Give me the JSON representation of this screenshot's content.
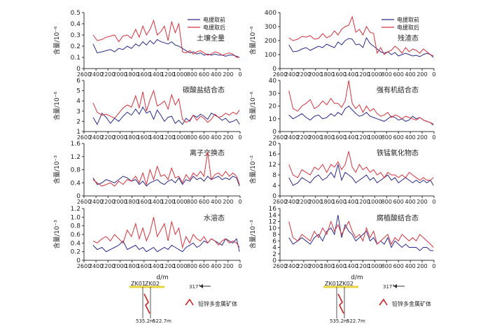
{
  "colors": {
    "before": "#2b2b8c",
    "after": "#d8323c",
    "well": "#cc2222",
    "ground": "#e8d23a",
    "axis": "#333333"
  },
  "xlabel": "d/m",
  "legend": {
    "before": "电援取前",
    "after": "电援取后"
  },
  "section": {
    "wells": [
      "ZK01",
      "ZK02"
    ],
    "depths": [
      "535.2m",
      "522.7m"
    ],
    "azimuth": "317°",
    "orebody_label": "铅锌多金属矿体"
  },
  "chart_data": [
    {
      "type": "line",
      "title": "土壤全量",
      "ylabel": "含量/10⁻⁶",
      "xlim": [
        2600,
        0
      ],
      "ylim": [
        0,
        0.5
      ],
      "yticks": [
        "0",
        "0.1",
        "0.2",
        "0.3",
        "0.4",
        "0.5"
      ],
      "legend": true,
      "x": [
        2450,
        2380,
        2300,
        2230,
        2160,
        2090,
        2020,
        1950,
        1880,
        1810,
        1740,
        1680,
        1620,
        1560,
        1500,
        1440,
        1380,
        1320,
        1260,
        1200,
        1140,
        1080,
        1020,
        960,
        900,
        840,
        780,
        720,
        660,
        600,
        540,
        480,
        420,
        360,
        300,
        240,
        180,
        120,
        60,
        10
      ],
      "series": [
        {
          "name": "电援取前",
          "values": [
            0.22,
            0.14,
            0.15,
            0.16,
            0.17,
            0.15,
            0.18,
            0.17,
            0.2,
            0.18,
            0.22,
            0.2,
            0.24,
            0.21,
            0.25,
            0.22,
            0.26,
            0.24,
            0.23,
            0.22,
            0.24,
            0.21,
            0.2,
            0.18,
            0.16,
            0.14,
            0.15,
            0.13,
            0.14,
            0.12,
            0.13,
            0.12,
            0.13,
            0.12,
            0.12,
            0.11,
            0.12,
            0.12,
            0.11,
            0.1
          ]
        },
        {
          "name": "电援取后",
          "values": [
            0.3,
            0.25,
            0.26,
            0.28,
            0.29,
            0.3,
            0.24,
            0.29,
            0.3,
            0.27,
            0.35,
            0.28,
            0.38,
            0.3,
            0.35,
            0.43,
            0.3,
            0.33,
            0.38,
            0.25,
            0.42,
            0.32,
            0.4,
            0.15,
            0.14,
            0.16,
            0.13,
            0.15,
            0.16,
            0.14,
            0.12,
            0.13,
            0.15,
            0.14,
            0.12,
            0.13,
            0.14,
            0.13,
            0.1,
            0.1
          ]
        }
      ]
    },
    {
      "type": "line",
      "title": "残渣态",
      "ylabel": "含量/10⁻⁶",
      "xlim": [
        2600,
        0
      ],
      "ylim": [
        0,
        400
      ],
      "yticks": [
        "0",
        "100",
        "200",
        "300",
        "400"
      ],
      "legend": true,
      "x": [
        2450,
        2380,
        2300,
        2230,
        2160,
        2090,
        2020,
        1950,
        1880,
        1810,
        1740,
        1680,
        1620,
        1560,
        1500,
        1440,
        1380,
        1320,
        1260,
        1200,
        1140,
        1080,
        1020,
        960,
        900,
        840,
        780,
        720,
        660,
        600,
        540,
        480,
        420,
        360,
        300,
        240,
        180,
        120,
        60,
        10
      ],
      "series": [
        {
          "name": "电援取前",
          "values": [
            170,
            120,
            125,
            140,
            150,
            130,
            145,
            160,
            150,
            175,
            160,
            150,
            190,
            170,
            200,
            215,
            210,
            170,
            175,
            150,
            220,
            180,
            160,
            140,
            120,
            110,
            120,
            100,
            115,
            90,
            100,
            110,
            100,
            90,
            95,
            85,
            100,
            110,
            100,
            80
          ]
        },
        {
          "name": "电援取后",
          "values": [
            220,
            200,
            210,
            230,
            225,
            235,
            210,
            215,
            250,
            220,
            235,
            270,
            240,
            280,
            300,
            310,
            370,
            260,
            280,
            240,
            300,
            260,
            250,
            110,
            150,
            100,
            120,
            130,
            160,
            140,
            110,
            150,
            120,
            140,
            130,
            110,
            140,
            120,
            100,
            90
          ]
        }
      ]
    },
    {
      "type": "line",
      "title": "碳酸盐结合态",
      "ylabel": "含量/10⁻⁶",
      "xlim": [
        2600,
        0
      ],
      "ylim": [
        1,
        6
      ],
      "yticks": [
        "1",
        "2",
        "3",
        "4",
        "5",
        "6"
      ],
      "legend": false,
      "x": [
        2450,
        2380,
        2300,
        2230,
        2160,
        2090,
        2020,
        1950,
        1880,
        1810,
        1740,
        1680,
        1620,
        1560,
        1500,
        1440,
        1380,
        1320,
        1260,
        1200,
        1140,
        1080,
        1020,
        960,
        900,
        840,
        780,
        720,
        660,
        600,
        540,
        480,
        420,
        360,
        300,
        240,
        180,
        120,
        60,
        10
      ],
      "series": [
        {
          "name": "电援取前",
          "values": [
            2.4,
            1.7,
            2.8,
            2.4,
            1.8,
            2.3,
            2.0,
            2.5,
            2.9,
            2.6,
            3.2,
            2.7,
            3.4,
            2.8,
            3.0,
            2.2,
            3.1,
            2.6,
            2.0,
            2.4,
            2.5,
            1.8,
            2.1,
            1.7,
            2.3,
            2.0,
            2.6,
            2.4,
            2.7,
            2.5,
            2.2,
            2.8,
            2.6,
            2.4,
            2.1,
            2.3,
            1.9,
            2.0,
            2.2,
            1.7
          ]
        },
        {
          "name": "电援取后",
          "values": [
            3.8,
            2.9,
            2.6,
            2.7,
            2.5,
            2.3,
            2.8,
            3.3,
            3.6,
            3.4,
            4.5,
            3.3,
            4.9,
            3.0,
            4.1,
            5.0,
            3.5,
            3.7,
            4.0,
            3.2,
            4.6,
            3.6,
            4.2,
            2.2,
            1.9,
            2.1,
            2.6,
            2.1,
            2.5,
            2.3,
            1.9,
            2.2,
            2.7,
            2.4,
            2.5,
            2.8,
            2.6,
            2.9,
            2.7,
            3.1
          ]
        }
      ]
    },
    {
      "type": "line",
      "title": "强有机结合态",
      "ylabel": "含量/10⁻⁶",
      "xlim": [
        2600,
        0
      ],
      "ylim": [
        0,
        40
      ],
      "yticks": [
        "0",
        "10",
        "20",
        "30",
        "40"
      ],
      "legend": false,
      "x": [
        2450,
        2380,
        2300,
        2230,
        2160,
        2090,
        2020,
        1950,
        1880,
        1810,
        1740,
        1680,
        1620,
        1560,
        1500,
        1440,
        1380,
        1320,
        1260,
        1200,
        1140,
        1080,
        1020,
        960,
        900,
        840,
        780,
        720,
        660,
        600,
        540,
        480,
        420,
        360,
        300,
        240,
        180,
        120,
        60,
        10
      ],
      "series": [
        {
          "name": "电援取前",
          "values": [
            13,
            10,
            12,
            14,
            11,
            9,
            12,
            13,
            10,
            11,
            14,
            12,
            15,
            13,
            18,
            20,
            17,
            14,
            12,
            13,
            15,
            12,
            11,
            10,
            9,
            8,
            10,
            12,
            11,
            9,
            10,
            8,
            9,
            12,
            10,
            11,
            9,
            8,
            7,
            5
          ]
        },
        {
          "name": "电援取后",
          "values": [
            32,
            18,
            16,
            20,
            22,
            25,
            18,
            20,
            24,
            21,
            26,
            22,
            22,
            19,
            24,
            40,
            22,
            18,
            21,
            15,
            20,
            16,
            18,
            14,
            12,
            13,
            15,
            11,
            13,
            12,
            10,
            12,
            11,
            10,
            9,
            11,
            9,
            8,
            7,
            6
          ]
        }
      ]
    },
    {
      "type": "line",
      "title": "离子交换态",
      "ylabel": "含量/10⁻³",
      "xlim": [
        2600,
        0
      ],
      "ylim": [
        0,
        1.6
      ],
      "yticks": [
        "0",
        "0.4",
        "0.8",
        "1.2",
        "1.6"
      ],
      "legend": false,
      "x": [
        2450,
        2380,
        2300,
        2230,
        2160,
        2090,
        2020,
        1950,
        1880,
        1810,
        1740,
        1680,
        1620,
        1560,
        1500,
        1440,
        1380,
        1320,
        1260,
        1200,
        1140,
        1080,
        1020,
        960,
        900,
        840,
        780,
        720,
        660,
        600,
        540,
        480,
        420,
        360,
        300,
        240,
        180,
        120,
        60,
        10
      ],
      "series": [
        {
          "name": "电援取前",
          "values": [
            0.55,
            0.35,
            0.4,
            0.5,
            0.45,
            0.4,
            0.5,
            0.6,
            0.55,
            0.45,
            0.5,
            0.35,
            0.45,
            0.3,
            0.4,
            0.45,
            0.5,
            0.4,
            0.35,
            0.45,
            0.5,
            0.4,
            0.55,
            0.35,
            0.5,
            0.45,
            0.6,
            0.5,
            0.55,
            0.45,
            0.6,
            0.5,
            0.55,
            0.6,
            0.5,
            0.55,
            0.5,
            0.6,
            0.55,
            0.3
          ]
        },
        {
          "name": "电援取后",
          "values": [
            0.5,
            0.4,
            0.3,
            0.35,
            0.4,
            0.3,
            0.45,
            0.35,
            0.5,
            0.45,
            0.6,
            0.4,
            0.7,
            0.35,
            0.8,
            0.5,
            0.9,
            0.6,
            0.65,
            0.5,
            0.85,
            0.55,
            0.6,
            0.4,
            0.65,
            0.5,
            0.7,
            0.6,
            0.75,
            0.6,
            1.35,
            0.5,
            0.65,
            0.7,
            0.6,
            0.75,
            0.6,
            0.7,
            0.6,
            0.35
          ]
        }
      ]
    },
    {
      "type": "line",
      "title": "铁锰氧化物态",
      "ylabel": "含量/10⁻²",
      "xlim": [
        2600,
        0
      ],
      "ylim": [
        0,
        20
      ],
      "yticks": [
        "0",
        "4",
        "8",
        "12",
        "16",
        "20"
      ],
      "legend": false,
      "x": [
        2450,
        2380,
        2300,
        2230,
        2160,
        2090,
        2020,
        1950,
        1880,
        1810,
        1740,
        1680,
        1620,
        1560,
        1500,
        1440,
        1380,
        1320,
        1260,
        1200,
        1140,
        1080,
        1020,
        960,
        900,
        840,
        780,
        720,
        660,
        600,
        540,
        480,
        420,
        360,
        300,
        240,
        180,
        120,
        60,
        10
      ],
      "series": [
        {
          "name": "电援取前",
          "values": [
            7,
            4,
            5,
            7,
            6,
            5,
            7,
            8,
            6,
            7,
            9,
            7,
            12,
            6,
            9,
            8,
            7,
            5,
            6,
            7,
            8,
            6,
            7,
            5,
            6,
            7,
            8,
            6,
            7,
            5,
            6,
            7,
            6,
            5,
            6,
            5,
            6,
            5,
            6,
            4
          ]
        },
        {
          "name": "电援取后",
          "values": [
            12,
            8,
            7,
            10,
            9,
            8,
            11,
            10,
            12,
            9,
            12,
            11,
            13,
            10,
            12,
            17,
            11,
            9,
            12,
            10,
            11,
            9,
            10,
            8,
            9,
            7,
            9,
            8,
            8,
            7,
            8,
            7,
            9,
            8,
            7,
            6,
            7,
            6,
            6,
            7
          ]
        }
      ]
    },
    {
      "type": "line",
      "title": "水溶态",
      "ylabel": "含量/10⁻³",
      "xlim": [
        2600,
        0
      ],
      "ylim": [
        0,
        1.2
      ],
      "yticks": [
        "0",
        "0.2",
        "0.4",
        "0.6",
        "0.8",
        "1.0",
        "1.2"
      ],
      "legend": false,
      "x": [
        2450,
        2380,
        2300,
        2230,
        2160,
        2090,
        2020,
        1950,
        1880,
        1810,
        1740,
        1680,
        1620,
        1560,
        1500,
        1440,
        1380,
        1320,
        1260,
        1200,
        1140,
        1080,
        1020,
        960,
        900,
        840,
        780,
        720,
        660,
        600,
        540,
        480,
        420,
        360,
        300,
        240,
        180,
        120,
        60,
        10
      ],
      "series": [
        {
          "name": "电援取前",
          "values": [
            0.35,
            0.25,
            0.3,
            0.2,
            0.25,
            0.3,
            0.35,
            0.45,
            0.25,
            0.3,
            0.35,
            0.25,
            0.3,
            0.2,
            0.25,
            0.3,
            0.2,
            0.25,
            0.3,
            0.25,
            0.35,
            0.3,
            0.25,
            0.2,
            0.3,
            0.35,
            0.4,
            0.3,
            0.35,
            0.45,
            0.4,
            0.5,
            0.45,
            0.4,
            0.35,
            0.5,
            0.45,
            0.4,
            0.5,
            0.2
          ]
        },
        {
          "name": "电援取后",
          "values": [
            0.45,
            0.4,
            0.5,
            0.55,
            0.45,
            0.6,
            0.5,
            0.4,
            0.7,
            0.55,
            0.85,
            0.5,
            0.75,
            0.45,
            0.65,
            1.0,
            0.55,
            0.7,
            0.85,
            0.45,
            0.9,
            0.6,
            0.75,
            0.3,
            0.55,
            0.4,
            0.6,
            0.5,
            0.45,
            0.55,
            0.4,
            0.5,
            0.45,
            0.35,
            0.45,
            0.5,
            0.4,
            0.45,
            0.4,
            0.3
          ]
        }
      ]
    },
    {
      "type": "line",
      "title": "腐植酸结合态",
      "ylabel": "含量/10⁻³",
      "xlim": [
        2600,
        0
      ],
      "ylim": [
        0,
        16
      ],
      "yticks": [
        "0",
        "2",
        "4",
        "6",
        "8",
        "10",
        "12",
        "14",
        "16"
      ],
      "legend": false,
      "x": [
        2450,
        2380,
        2300,
        2230,
        2160,
        2090,
        2020,
        1950,
        1880,
        1810,
        1740,
        1680,
        1620,
        1560,
        1500,
        1440,
        1380,
        1320,
        1260,
        1200,
        1140,
        1080,
        1020,
        960,
        900,
        840,
        780,
        720,
        660,
        600,
        540,
        480,
        420,
        360,
        300,
        240,
        180,
        120,
        60,
        10
      ],
      "series": [
        {
          "name": "电援取前",
          "values": [
            7,
            5,
            6,
            7,
            6,
            5,
            7,
            8,
            6,
            9,
            10,
            8,
            14,
            7,
            11,
            9,
            8,
            6,
            7,
            8,
            9,
            6,
            7,
            5,
            6,
            5,
            7,
            4,
            6,
            5,
            4,
            5,
            4,
            4,
            4,
            3,
            4,
            4,
            3,
            3
          ]
        },
        {
          "name": "电援取后",
          "values": [
            12,
            7,
            6,
            8,
            7,
            6,
            9,
            7,
            10,
            8,
            12,
            9,
            11,
            8,
            10,
            12,
            9,
            7,
            8,
            6,
            10,
            7,
            9,
            5,
            6,
            7,
            8,
            5,
            7,
            6,
            8,
            7,
            6,
            7,
            6,
            8,
            7,
            6,
            5,
            4
          ]
        }
      ]
    }
  ]
}
